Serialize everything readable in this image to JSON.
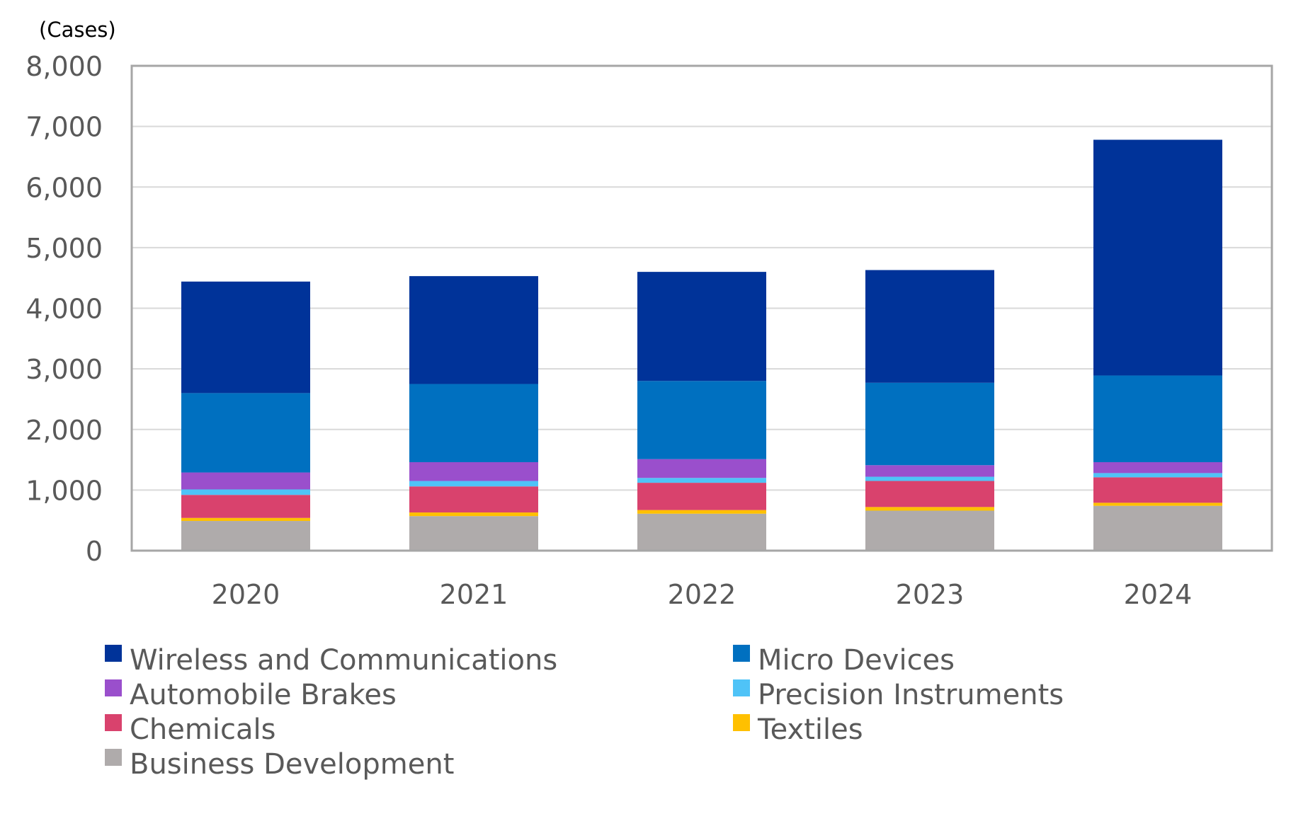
{
  "chart_data": {
    "type": "bar",
    "stacked": true,
    "title": "",
    "unit_label": "(Cases)",
    "xlabel": "",
    "ylabel": "",
    "ylim": [
      0,
      8000
    ],
    "yticks": [
      0,
      1000,
      2000,
      3000,
      4000,
      5000,
      6000,
      7000,
      8000
    ],
    "ytick_labels": [
      "0",
      "1,000",
      "2,000",
      "3,000",
      "4,000",
      "5,000",
      "6,000",
      "7,000",
      "8,000"
    ],
    "grid": true,
    "legend_position": "bottom",
    "categories": [
      "2020",
      "2021",
      "2022",
      "2023",
      "2024"
    ],
    "series": [
      {
        "name": "Business Development",
        "color": "#AFABAB",
        "values": [
          490,
          570,
          610,
          660,
          740
        ]
      },
      {
        "name": "Textiles",
        "color": "#FFC000",
        "values": [
          50,
          60,
          60,
          60,
          50
        ]
      },
      {
        "name": "Chemicals",
        "color": "#D9426D",
        "values": [
          380,
          430,
          450,
          430,
          420
        ]
      },
      {
        "name": "Precision Instruments",
        "color": "#4FC3F7",
        "values": [
          90,
          90,
          80,
          70,
          70
        ]
      },
      {
        "name": "Automobile Brakes",
        "color": "#9A4FCC",
        "values": [
          280,
          310,
          310,
          190,
          180
        ]
      },
      {
        "name": "Micro Devices",
        "color": "#0070C0",
        "values": [
          1310,
          1290,
          1290,
          1360,
          1430
        ]
      },
      {
        "name": "Wireless and Communications",
        "color": "#003399",
        "values": [
          1840,
          1780,
          1800,
          1860,
          3890
        ]
      }
    ],
    "legend_order": [
      "Wireless and Communications",
      "Micro Devices",
      "Automobile Brakes",
      "Precision Instruments",
      "Chemicals",
      "Textiles",
      "Business Development"
    ]
  }
}
